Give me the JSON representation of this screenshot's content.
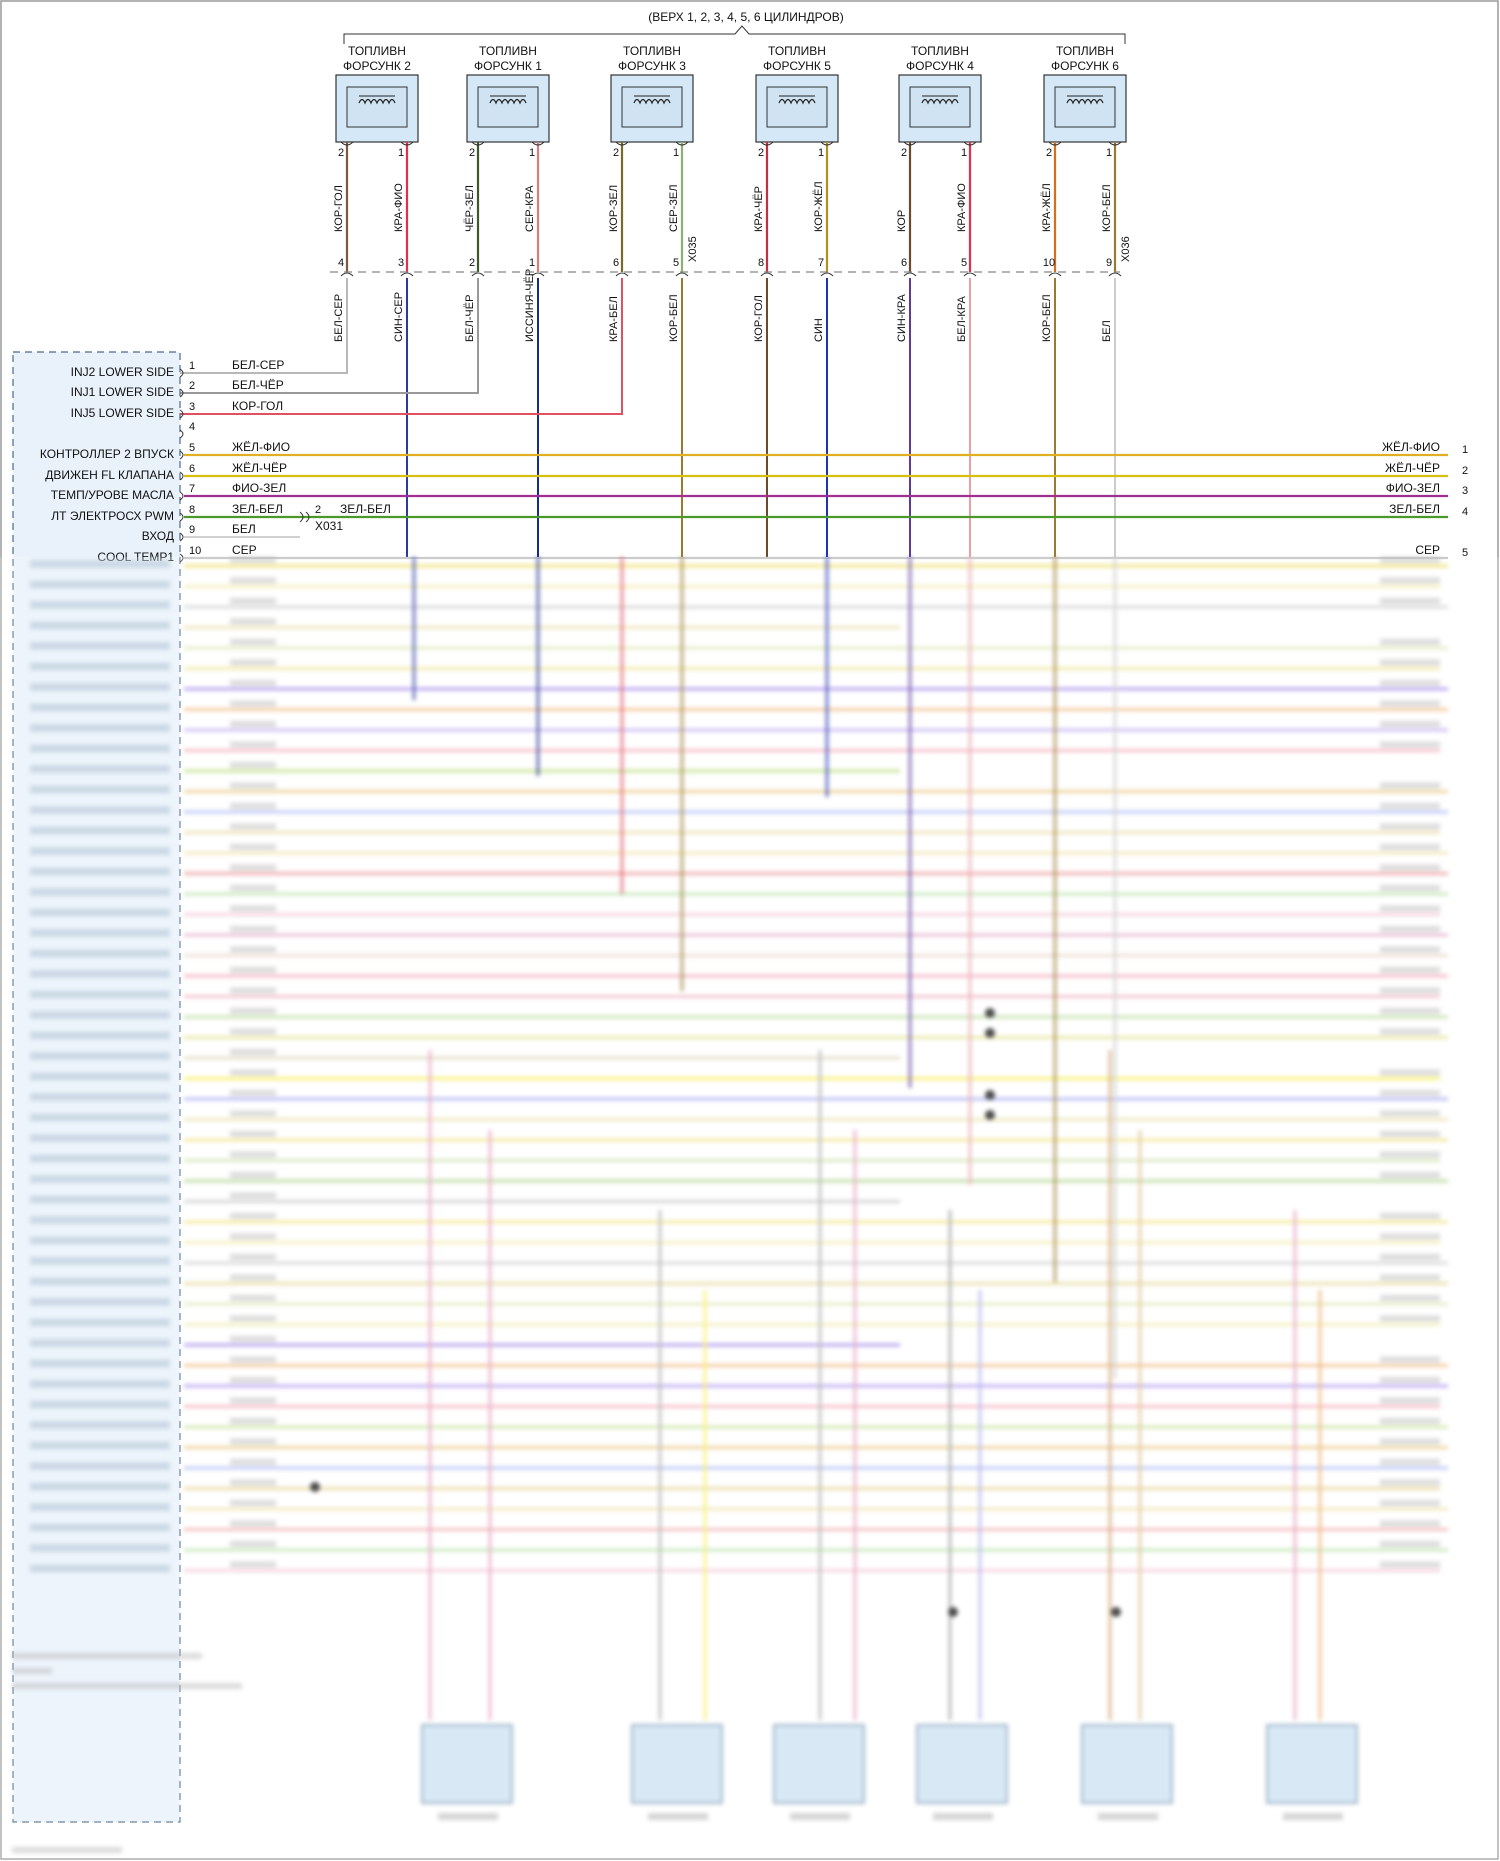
{
  "header": {
    "group_label": "(ВЕРХ 1, 2, 3, 4, 5, 6 ЦИЛИНДРОВ)"
  },
  "connectors": {
    "upper": "X035",
    "upper2": "X036",
    "splice": "X031"
  },
  "injectors": [
    {
      "name": "ТОПЛИВН\nФОРСУНК 2",
      "pinA": "2",
      "pinB": "1",
      "wireA": "КОР-ГОЛ",
      "wireB": "КРА-ФИО",
      "cpinA": "4",
      "cpinB": "3",
      "lowA": "БЕЛ-СЕР",
      "lowB": "СИН-СЕР",
      "colA": "#7a5a3a",
      "colB": "#e03050",
      "lowColA": "#b8b8b8",
      "lowColB": "#2a3aa0"
    },
    {
      "name": "ТОПЛИВН\nФОРСУНК 1",
      "pinA": "2",
      "pinB": "1",
      "wireA": "ЧЁР-ЗЕЛ",
      "wireB": "СЕР-КРА",
      "cpinA": "2",
      "cpinB": "1",
      "lowA": "БЕЛ-ЧЁР",
      "lowB": "ИССИНЯ-ЧЁР",
      "colA": "#3a5a2a",
      "colB": "#d08080",
      "lowColA": "#999999",
      "lowColB": "#1a2a8a"
    },
    {
      "name": "ТОПЛИВН\nФОРСУНК 3",
      "pinA": "2",
      "pinB": "1",
      "wireA": "КОР-ЗЕЛ",
      "wireB": "СЕР-ЗЕЛ",
      "cpinA": "6",
      "cpinB": "5",
      "lowA": "КРА-БЕЛ",
      "lowB": "КОР-БЕЛ",
      "colA": "#7a6a2a",
      "colB": "#8cb070",
      "lowColA": "#e05060",
      "lowColB": "#9a7a30"
    },
    {
      "name": "ТОПЛИВН\nФОРСУНК 5",
      "pinA": "2",
      "pinB": "1",
      "wireA": "КРА-ЧЁР",
      "wireB": "КОР-ЖЁЛ",
      "cpinA": "8",
      "cpinB": "7",
      "lowA": "КОР-ГОЛ",
      "lowB": "СИН",
      "colA": "#c03040",
      "colB": "#b09020",
      "lowColA": "#6a4a2a",
      "lowColB": "#2030b0"
    },
    {
      "name": "ТОПЛИВН\nФОРСУНК 4",
      "pinA": "2",
      "pinB": "1",
      "wireA": "КОР",
      "wireB": "КРА-ФИО",
      "cpinA": "6",
      "cpinB": "5",
      "lowA": "СИН-КРА",
      "lowB": "БЕЛ-КРА",
      "colA": "#6a4a2a",
      "colB": "#e03050",
      "lowColA": "#5a3aa0",
      "lowColB": "#e8a0a8"
    },
    {
      "name": "ТОПЛИВН\nФОРСУНК 6",
      "pinA": "2",
      "pinB": "1",
      "wireA": "КРА-ЖЁЛ",
      "wireB": "КОР-БЕЛ",
      "cpinA": "10",
      "cpinB": "9",
      "lowA": "КОР-БЕЛ",
      "lowB": "БЕЛ",
      "colA": "#d07020",
      "colB": "#9a7a30",
      "lowColA": "#9a7a30",
      "lowColB": "#cccccc"
    }
  ],
  "ecu_rows": [
    {
      "label": "INJ2 LOWER SIDE",
      "pin": "1",
      "wire": "БЕЛ-СЕР",
      "color": "#b8b8b8"
    },
    {
      "label": "INJ1 LOWER SIDE",
      "pin": "2",
      "wire": "БЕЛ-ЧЁР",
      "color": "#999999"
    },
    {
      "label": "INJ5 LOWER SIDE",
      "pin": "3",
      "wire": "КОР-ГОЛ",
      "color": "#6a4a2a"
    },
    {
      "label": "",
      "pin": "4",
      "wire": "",
      "color": ""
    },
    {
      "label": "КОНТРОЛЛЕР 2 ВПУСК",
      "pin": "5",
      "wire": "ЖЁЛ-ФИО",
      "color": "#e0b020",
      "rpin": "1",
      "rwire": "ЖЁЛ-ФИО"
    },
    {
      "label": "ДВИЖЕН FL КЛАПАНА",
      "pin": "6",
      "wire": "ЖЁЛ-ЧЁР",
      "color": "#d8c010",
      "rpin": "2",
      "rwire": "ЖЁЛ-ЧЁР"
    },
    {
      "label": "ТЕМП/УРОВЕ МАСЛА",
      "pin": "7",
      "wire": "ФИО-ЗЕЛ",
      "color": "#a03090",
      "rpin": "3",
      "rwire": "ФИО-ЗЕЛ"
    },
    {
      "label": "ЛТ ЭЛЕКТРОСХ PWM",
      "pin": "8",
      "wire": "ЗЕЛ-БЕЛ",
      "color": "#4a9a2a",
      "rpin": "4",
      "rwire": "ЗЕЛ-БЕЛ",
      "mid_pin": "2",
      "mid_wire": "ЗЕЛ-БЕЛ"
    },
    {
      "label": "ВХОД",
      "pin": "9",
      "wire": "БЕЛ",
      "color": "#d0d0d0"
    },
    {
      "label": "COOL TEMP1",
      "pin": "10",
      "wire": "СЕР",
      "color": "#c0c0c0",
      "rpin": "5",
      "rwire": "СЕР"
    }
  ]
}
